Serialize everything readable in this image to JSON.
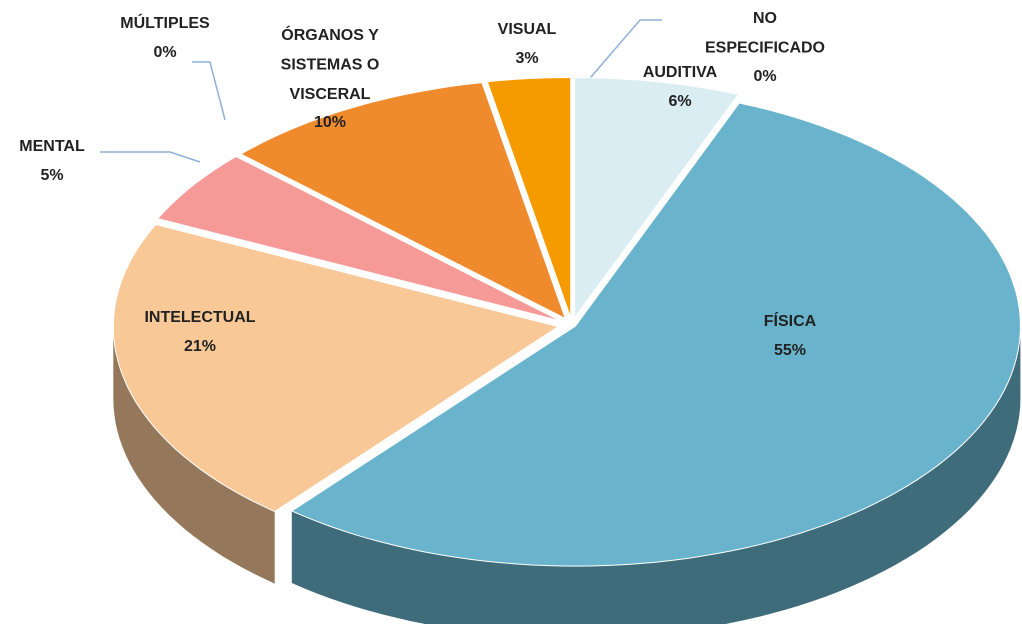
{
  "chart_data": {
    "type": "pie",
    "categories": [
      "AUDITIVA",
      "FÍSICA",
      "INTELECTUAL",
      "MENTAL",
      "MÚLTIPLES",
      "ÓRGANOS Y SISTEMAS O VISCERAL",
      "VISUAL",
      "NO ESPECIFICADO"
    ],
    "values": [
      6,
      55,
      21,
      5,
      0,
      10,
      3,
      0
    ],
    "value_labels": [
      "6%",
      "55%",
      "21%",
      "5%",
      "0%",
      "10%",
      "3%",
      "0%"
    ],
    "colors": [
      "#daedf3",
      "#69b4cc",
      "#f9c897",
      "#f69a98",
      "#e5be00",
      "#ef8a2d",
      "#f59b00",
      "#dde8f1"
    ]
  }
}
